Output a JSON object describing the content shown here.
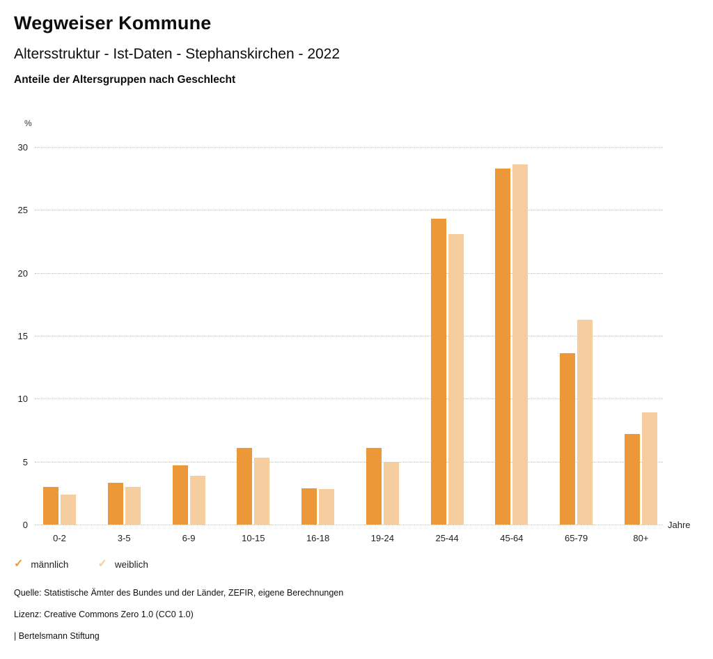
{
  "header": {
    "title": "Wegweiser Kommune",
    "subtitle": "Altersstruktur - Ist-Daten - Stephanskirchen - 2022",
    "chart_heading": "Anteile der Altersgruppen nach Geschlecht"
  },
  "chart_data": {
    "type": "bar",
    "title": "Anteile der Altersgruppen nach Geschlecht",
    "unit_label": "%",
    "x_axis_label": "Jahre",
    "categories": [
      "0-2",
      "3-5",
      "6-9",
      "10-15",
      "16-18",
      "19-24",
      "25-44",
      "45-64",
      "65-79",
      "80+"
    ],
    "series": [
      {
        "name": "männlich",
        "color": "#EC9839",
        "values": [
          3.0,
          3.3,
          4.7,
          6.1,
          2.9,
          6.1,
          24.3,
          28.3,
          13.6,
          7.2
        ]
      },
      {
        "name": "weiblich",
        "color": "#F5CD9F",
        "values": [
          2.4,
          3.0,
          3.9,
          5.3,
          2.8,
          5.0,
          23.1,
          28.6,
          16.3,
          8.9
        ]
      }
    ],
    "ylim": [
      0,
      30
    ],
    "y_ticks": [
      0,
      5,
      10,
      15,
      20,
      25,
      30
    ],
    "grid": "horizontal-dotted",
    "legend_position": "bottom-left"
  },
  "legend": {
    "items": [
      {
        "label": "männlich",
        "color": "#EC9839",
        "icon": "check-icon"
      },
      {
        "label": "weiblich",
        "color": "#F5CD9F",
        "icon": "check-icon"
      }
    ]
  },
  "footer": {
    "source": "Quelle: Statistische Ämter des Bundes und der Länder, ZEFIR, eigene Berechnungen",
    "license": "Lizenz: Creative Commons Zero 1.0 (CC0 1.0)",
    "attribution": "| Bertelsmann Stiftung"
  }
}
